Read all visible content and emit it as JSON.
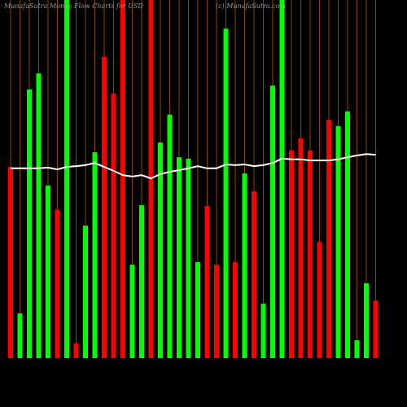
{
  "chart_data": {
    "type": "bar",
    "title": "MunafaSutra  Money Flow  Charts for USD",
    "subtitle": "(c) MunafaSutra.com",
    "ylim": [
      0,
      100
    ],
    "series": [
      {
        "values": [
          53.4,
          12.5,
          75.0,
          79.5,
          48.2,
          41.4,
          100,
          4.1,
          37.0,
          57.5,
          84.1,
          73.9,
          100,
          26.1,
          42.7,
          100,
          60.2,
          68.0,
          56.1,
          55.7,
          26.8,
          42.5,
          26.1,
          92.0,
          26.8,
          51.6,
          46.6,
          15.2,
          76.1,
          100,
          58.0,
          61.4,
          58.0,
          32.5,
          66.6,
          64.8,
          68.9,
          5.0,
          20.9,
          16.1
        ],
        "colors": [
          "#ff0000",
          "#00ff00",
          "#00ff00",
          "#00ff00",
          "#00ff00",
          "#ff0000",
          "#00ff00",
          "#ff0000",
          "#00ff00",
          "#00ff00",
          "#ff0000",
          "#ff0000",
          "#ff0000",
          "#00ff00",
          "#00ff00",
          "#ff0000",
          "#00ff00",
          "#00ff00",
          "#00ff00",
          "#00ff00",
          "#00ff00",
          "#ff0000",
          "#ff0000",
          "#00ff00",
          "#ff0000",
          "#00ff00",
          "#ff0000",
          "#00ff00",
          "#00ff00",
          "#00ff00",
          "#ff0000",
          "#ff0000",
          "#ff0000",
          "#ff0000",
          "#ff0000",
          "#00ff00",
          "#00ff00",
          "#00ff00",
          "#00ff00",
          "#ff0000"
        ]
      },
      {
        "type": "line",
        "color": "#ffffff",
        "values": [
          53.0,
          53.0,
          53.0,
          53.0,
          53.2,
          52.7,
          53.4,
          53.6,
          53.9,
          54.5,
          53.4,
          52.3,
          51.1,
          50.7,
          51.1,
          50.2,
          51.4,
          52.0,
          52.5,
          53.0,
          53.6,
          53.0,
          53.0,
          54.1,
          53.9,
          54.1,
          53.6,
          53.9,
          54.5,
          55.7,
          55.5,
          55.5,
          55.2,
          55.2,
          55.2,
          55.5,
          56.1,
          56.6,
          57.0,
          56.8
        ]
      }
    ],
    "grid_color": "#8b4500"
  }
}
